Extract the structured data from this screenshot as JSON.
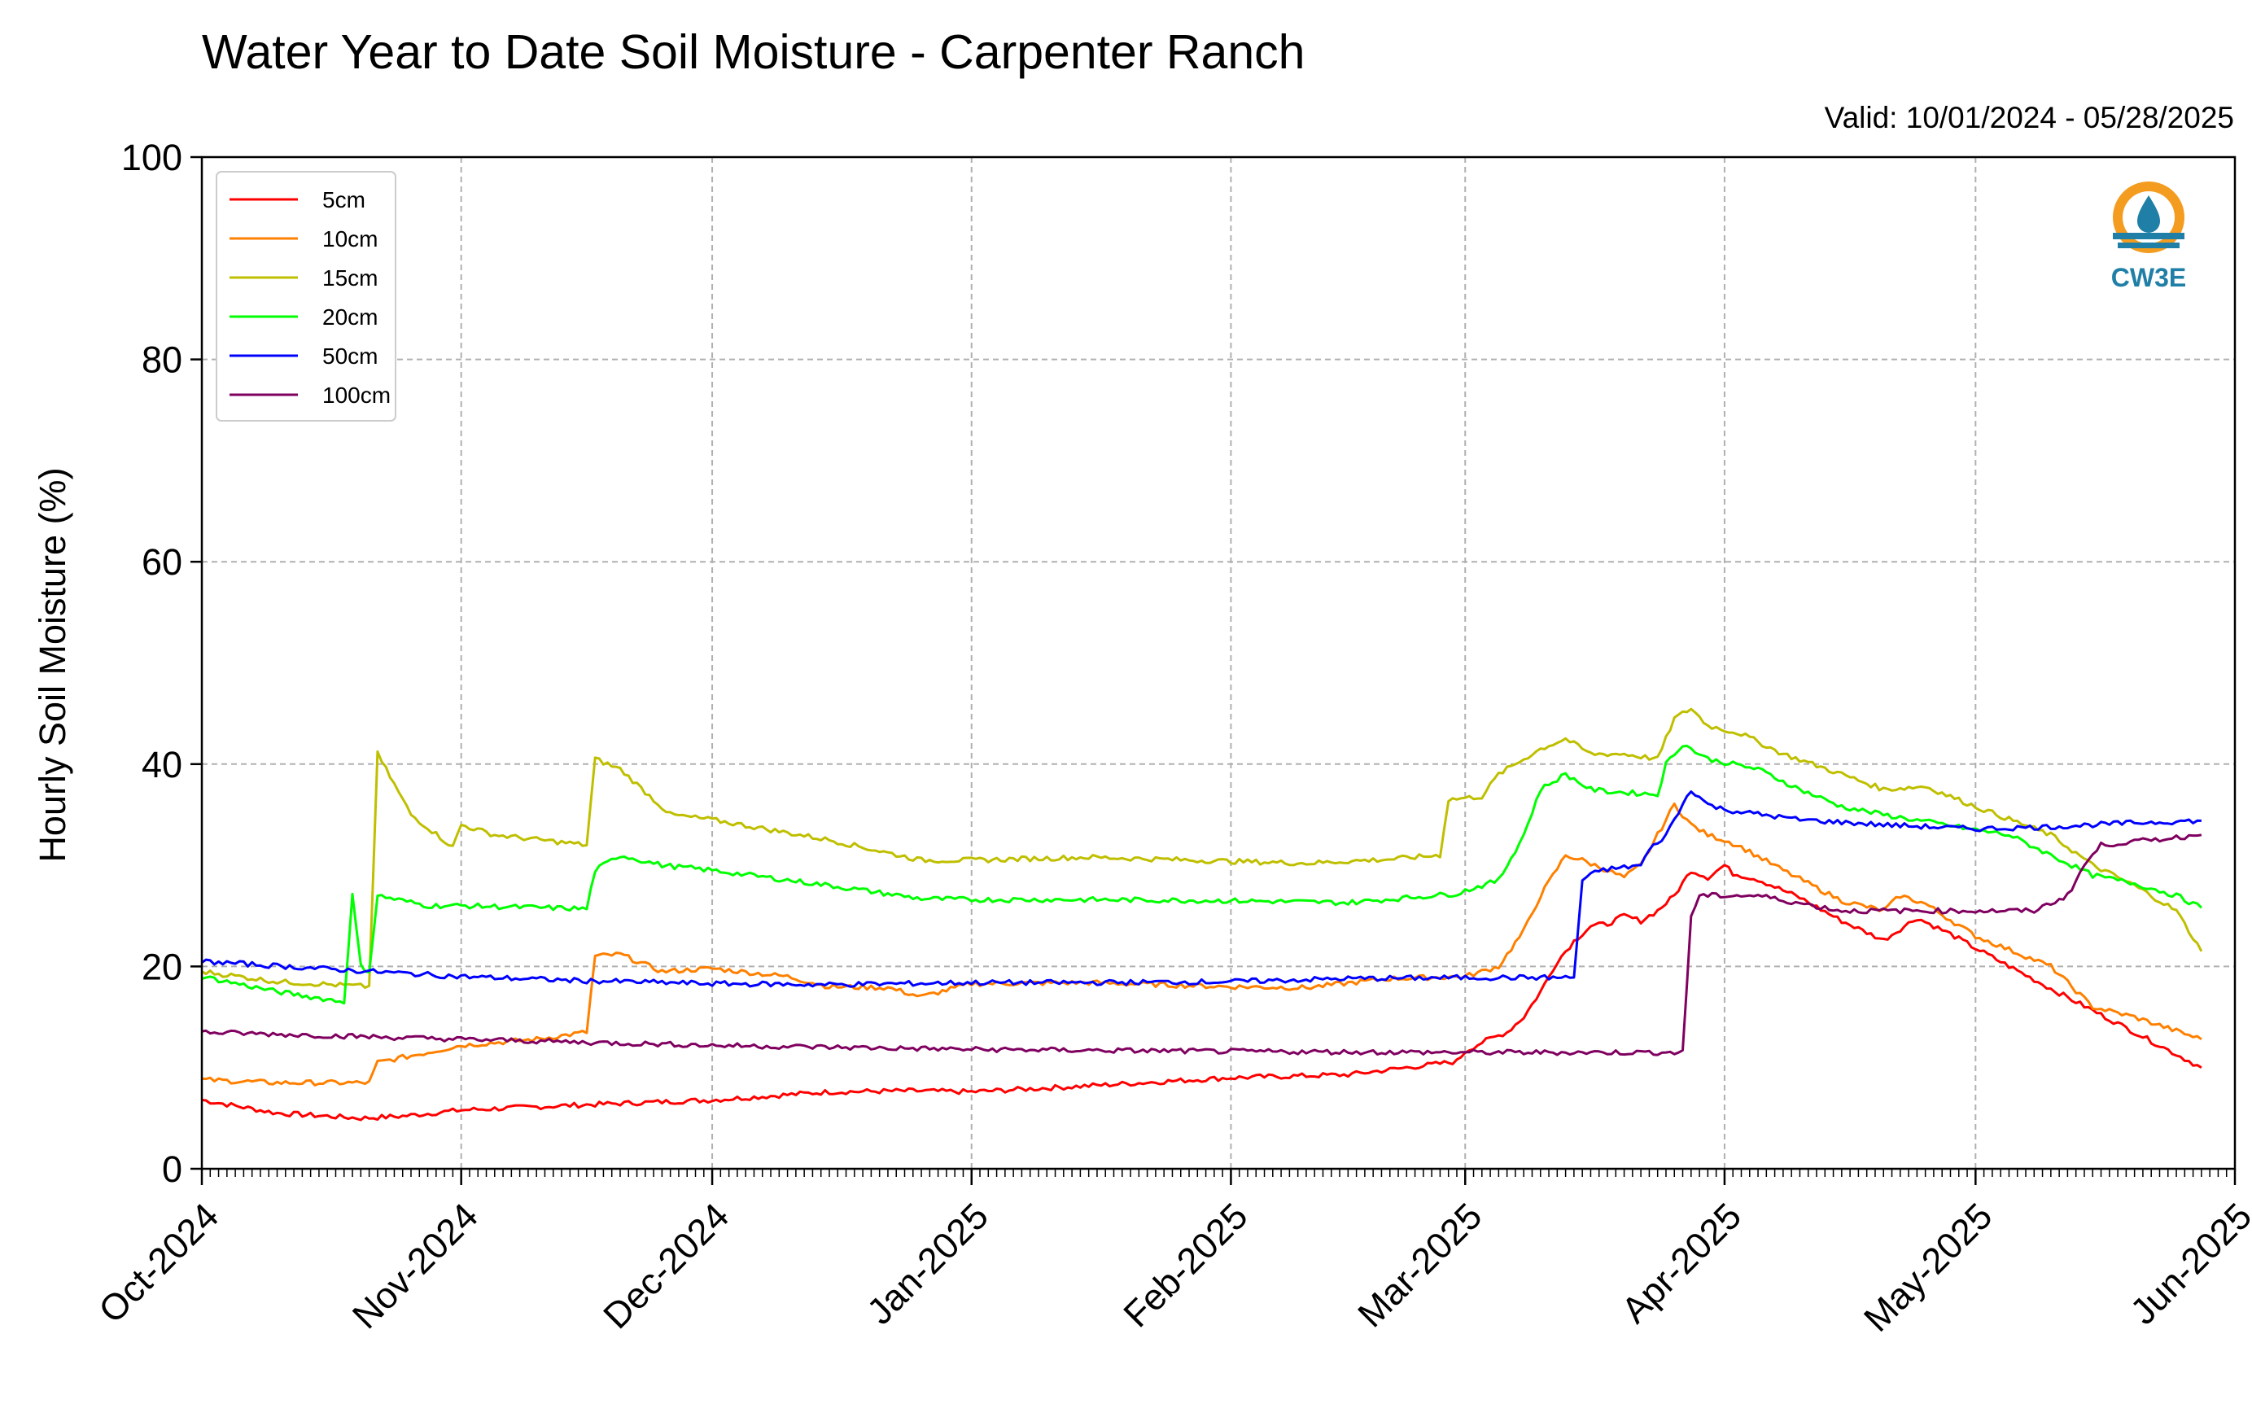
{
  "chart_data": {
    "type": "line",
    "title": "Water Year to Date Soil Moisture - Carpenter Ranch",
    "subtitle": "Valid: 10/01/2024 - 05/28/2025",
    "ylabel": "Hourly Soil Moisture (%)",
    "xlabel": "",
    "ylim": [
      0,
      100
    ],
    "yticks": [
      0,
      20,
      40,
      60,
      80,
      100
    ],
    "xlim": [
      "2024-10-01",
      "2025-06-01"
    ],
    "xticks": [
      {
        "date": "2024-10-01",
        "label": "Oct-2024"
      },
      {
        "date": "2024-11-01",
        "label": "Nov-2024"
      },
      {
        "date": "2024-12-01",
        "label": "Dec-2024"
      },
      {
        "date": "2025-01-01",
        "label": "Jan-2025"
      },
      {
        "date": "2025-02-01",
        "label": "Feb-2025"
      },
      {
        "date": "2025-03-01",
        "label": "Mar-2025"
      },
      {
        "date": "2025-04-01",
        "label": "Apr-2025"
      },
      {
        "date": "2025-05-01",
        "label": "May-2025"
      },
      {
        "date": "2025-06-01",
        "label": "Jun-2025"
      }
    ],
    "grid": true,
    "legend_position": "top-left",
    "series": [
      {
        "name": "5cm",
        "color": "#ff0000",
        "points": [
          [
            "2024-10-01",
            6.8
          ],
          [
            "2024-10-10",
            5.5
          ],
          [
            "2024-10-20",
            5.0
          ],
          [
            "2024-10-25",
            5.2
          ],
          [
            "2024-11-01",
            5.8
          ],
          [
            "2024-11-15",
            6.3
          ],
          [
            "2024-12-01",
            6.8
          ],
          [
            "2024-12-15",
            7.6
          ],
          [
            "2024-12-25",
            7.7
          ],
          [
            "2025-01-01",
            7.6
          ],
          [
            "2025-01-15",
            8.2
          ],
          [
            "2025-02-01",
            9.0
          ],
          [
            "2025-02-15",
            9.3
          ],
          [
            "2025-02-28",
            10.6
          ],
          [
            "2025-03-01",
            11.6
          ],
          [
            "2025-03-03",
            12.5
          ],
          [
            "2025-03-06",
            13.5
          ],
          [
            "2025-03-08",
            15.0
          ],
          [
            "2025-03-10",
            17.5
          ],
          [
            "2025-03-12",
            20.5
          ],
          [
            "2025-03-14",
            22.5
          ],
          [
            "2025-03-16",
            24.0
          ],
          [
            "2025-03-18",
            24.2
          ],
          [
            "2025-03-20",
            25.0
          ],
          [
            "2025-03-22",
            24.5
          ],
          [
            "2025-03-24",
            25.5
          ],
          [
            "2025-03-26",
            27.0
          ],
          [
            "2025-03-28",
            29.5
          ],
          [
            "2025-03-30",
            28.8
          ],
          [
            "2025-04-01",
            30.0
          ],
          [
            "2025-04-02",
            29.2
          ],
          [
            "2025-04-05",
            28.6
          ],
          [
            "2025-04-10",
            26.8
          ],
          [
            "2025-04-15",
            24.5
          ],
          [
            "2025-04-20",
            22.6
          ],
          [
            "2025-04-24",
            24.8
          ],
          [
            "2025-04-28",
            23.2
          ],
          [
            "2025-05-01",
            21.8
          ],
          [
            "2025-05-10",
            17.8
          ],
          [
            "2025-05-20",
            13.5
          ],
          [
            "2025-05-28",
            10.0
          ]
        ]
      },
      {
        "name": "10cm",
        "color": "#ff8000",
        "points": [
          [
            "2024-10-01",
            8.8
          ],
          [
            "2024-10-10",
            8.5
          ],
          [
            "2024-10-21",
            8.5
          ],
          [
            "2024-10-22",
            10.5
          ],
          [
            "2024-10-28",
            11.5
          ],
          [
            "2024-11-01",
            12.2
          ],
          [
            "2024-11-10",
            12.8
          ],
          [
            "2024-11-16",
            13.5
          ],
          [
            "2024-11-17",
            21.0
          ],
          [
            "2024-11-20",
            21.2
          ],
          [
            "2024-11-25",
            19.5
          ],
          [
            "2024-12-01",
            19.8
          ],
          [
            "2024-12-10",
            19.0
          ],
          [
            "2024-12-15",
            18.0
          ],
          [
            "2024-12-22",
            17.9
          ],
          [
            "2024-12-26",
            17.0
          ],
          [
            "2025-01-01",
            18.3
          ],
          [
            "2025-01-15",
            18.4
          ],
          [
            "2025-02-01",
            18.0
          ],
          [
            "2025-02-10",
            17.9
          ],
          [
            "2025-02-20",
            18.8
          ],
          [
            "2025-03-01",
            19.0
          ],
          [
            "2025-03-05",
            20.0
          ],
          [
            "2025-03-08",
            23.5
          ],
          [
            "2025-03-10",
            27.0
          ],
          [
            "2025-03-13",
            31.0
          ],
          [
            "2025-03-15",
            30.5
          ],
          [
            "2025-03-18",
            29.5
          ],
          [
            "2025-03-20",
            28.8
          ],
          [
            "2025-03-22",
            30.0
          ],
          [
            "2025-03-24",
            33.0
          ],
          [
            "2025-03-26",
            36.0
          ],
          [
            "2025-03-28",
            34.0
          ],
          [
            "2025-03-30",
            33.0
          ],
          [
            "2025-04-01",
            32.5
          ],
          [
            "2025-04-03",
            31.8
          ],
          [
            "2025-04-08",
            29.5
          ],
          [
            "2025-04-15",
            26.5
          ],
          [
            "2025-04-20",
            25.5
          ],
          [
            "2025-04-22",
            27.0
          ],
          [
            "2025-04-25",
            26.2
          ],
          [
            "2025-05-01",
            23.0
          ],
          [
            "2025-05-10",
            20.0
          ],
          [
            "2025-05-15",
            16.0
          ],
          [
            "2025-05-20",
            15.0
          ],
          [
            "2025-05-28",
            12.8
          ]
        ]
      },
      {
        "name": "15cm",
        "color": "#bfbf00",
        "points": [
          [
            "2024-10-01",
            19.5
          ],
          [
            "2024-10-10",
            18.5
          ],
          [
            "2024-10-21",
            18.0
          ],
          [
            "2024-10-22",
            41.0
          ],
          [
            "2024-10-26",
            35.0
          ],
          [
            "2024-10-31",
            31.8
          ],
          [
            "2024-11-01",
            34.0
          ],
          [
            "2024-11-05",
            33.0
          ],
          [
            "2024-11-16",
            32.0
          ],
          [
            "2024-11-17",
            40.5
          ],
          [
            "2024-11-20",
            39.5
          ],
          [
            "2024-11-26",
            35.0
          ],
          [
            "2024-12-01",
            34.5
          ],
          [
            "2024-12-15",
            32.5
          ],
          [
            "2024-12-26",
            30.5
          ],
          [
            "2025-01-01",
            30.5
          ],
          [
            "2025-01-15",
            30.8
          ],
          [
            "2025-02-01",
            30.4
          ],
          [
            "2025-02-10",
            30.2
          ],
          [
            "2025-02-20",
            30.6
          ],
          [
            "2025-02-26",
            31.0
          ],
          [
            "2025-02-27",
            36.5
          ],
          [
            "2025-03-03",
            36.8
          ],
          [
            "2025-03-05",
            39.0
          ],
          [
            "2025-03-10",
            41.5
          ],
          [
            "2025-03-13",
            42.5
          ],
          [
            "2025-03-16",
            41.0
          ],
          [
            "2025-03-20",
            41.0
          ],
          [
            "2025-03-24",
            40.5
          ],
          [
            "2025-03-26",
            44.5
          ],
          [
            "2025-03-28",
            45.5
          ],
          [
            "2025-03-30",
            43.8
          ],
          [
            "2025-04-03",
            43.0
          ],
          [
            "2025-04-08",
            41.0
          ],
          [
            "2025-04-15",
            39.0
          ],
          [
            "2025-04-20",
            37.5
          ],
          [
            "2025-04-25",
            37.8
          ],
          [
            "2025-05-01",
            35.8
          ],
          [
            "2025-05-10",
            33.0
          ],
          [
            "2025-05-15",
            30.0
          ],
          [
            "2025-05-20",
            28.0
          ],
          [
            "2025-05-25",
            25.5
          ],
          [
            "2025-05-28",
            21.5
          ]
        ]
      },
      {
        "name": "20cm",
        "color": "#00ff00",
        "points": [
          [
            "2024-10-01",
            19.0
          ],
          [
            "2024-10-10",
            17.5
          ],
          [
            "2024-10-18",
            16.5
          ],
          [
            "2024-10-19",
            27.0
          ],
          [
            "2024-10-20",
            20.0
          ],
          [
            "2024-10-21",
            19.5
          ],
          [
            "2024-10-22",
            27.0
          ],
          [
            "2024-10-28",
            26.0
          ],
          [
            "2024-11-01",
            26.0
          ],
          [
            "2024-11-16",
            25.7
          ],
          [
            "2024-11-17",
            29.5
          ],
          [
            "2024-11-20",
            31.0
          ],
          [
            "2024-11-25",
            30.0
          ],
          [
            "2024-12-01",
            29.5
          ],
          [
            "2024-12-15",
            28.0
          ],
          [
            "2024-12-26",
            26.7
          ],
          [
            "2025-01-01",
            26.6
          ],
          [
            "2025-01-15",
            26.6
          ],
          [
            "2025-02-01",
            26.5
          ],
          [
            "2025-02-15",
            26.3
          ],
          [
            "2025-02-28",
            27.2
          ],
          [
            "2025-03-01",
            27.5
          ],
          [
            "2025-03-05",
            28.5
          ],
          [
            "2025-03-08",
            33.0
          ],
          [
            "2025-03-10",
            37.5
          ],
          [
            "2025-03-13",
            39.0
          ],
          [
            "2025-03-16",
            37.5
          ],
          [
            "2025-03-18",
            37.3
          ],
          [
            "2025-03-24",
            37.0
          ],
          [
            "2025-03-25",
            40.0
          ],
          [
            "2025-03-27",
            42.0
          ],
          [
            "2025-03-30",
            40.5
          ],
          [
            "2025-04-05",
            39.5
          ],
          [
            "2025-04-10",
            37.5
          ],
          [
            "2025-04-15",
            35.8
          ],
          [
            "2025-04-20",
            35.0
          ],
          [
            "2025-05-01",
            33.5
          ],
          [
            "2025-05-05",
            33.0
          ],
          [
            "2025-05-10",
            31.0
          ],
          [
            "2025-05-15",
            29.0
          ],
          [
            "2025-05-20",
            28.2
          ],
          [
            "2025-05-25",
            27.0
          ],
          [
            "2025-05-28",
            25.8
          ]
        ]
      },
      {
        "name": "50cm",
        "color": "#0000ff",
        "points": [
          [
            "2024-10-01",
            20.5
          ],
          [
            "2024-10-15",
            19.8
          ],
          [
            "2024-11-01",
            19.0
          ],
          [
            "2024-11-15",
            18.6
          ],
          [
            "2024-12-01",
            18.3
          ],
          [
            "2024-12-15",
            18.2
          ],
          [
            "2025-01-01",
            18.4
          ],
          [
            "2025-01-15",
            18.4
          ],
          [
            "2025-02-01",
            18.5
          ],
          [
            "2025-02-15",
            18.8
          ],
          [
            "2025-03-01",
            18.9
          ],
          [
            "2025-03-14",
            18.9
          ],
          [
            "2025-03-15",
            28.5
          ],
          [
            "2025-03-17",
            29.5
          ],
          [
            "2025-03-22",
            30.0
          ],
          [
            "2025-03-23",
            31.5
          ],
          [
            "2025-03-25",
            33.0
          ],
          [
            "2025-03-28",
            37.5
          ],
          [
            "2025-03-30",
            36.0
          ],
          [
            "2025-04-01",
            35.5
          ],
          [
            "2025-04-10",
            34.5
          ],
          [
            "2025-04-20",
            34.0
          ],
          [
            "2025-05-01",
            33.6
          ],
          [
            "2025-05-10",
            33.8
          ],
          [
            "2025-05-20",
            34.2
          ],
          [
            "2025-05-28",
            34.4
          ]
        ]
      },
      {
        "name": "100cm",
        "color": "#800060",
        "points": [
          [
            "2024-10-01",
            13.5
          ],
          [
            "2024-11-01",
            12.8
          ],
          [
            "2024-12-01",
            12.2
          ],
          [
            "2025-01-01",
            11.8
          ],
          [
            "2025-02-01",
            11.6
          ],
          [
            "2025-03-01",
            11.5
          ],
          [
            "2025-03-27",
            11.5
          ],
          [
            "2025-03-28",
            25.0
          ],
          [
            "2025-03-29",
            27.0
          ],
          [
            "2025-04-05",
            27.0
          ],
          [
            "2025-04-15",
            25.5
          ],
          [
            "2025-05-01",
            25.5
          ],
          [
            "2025-05-08",
            25.5
          ],
          [
            "2025-05-12",
            27.0
          ],
          [
            "2025-05-14",
            30.0
          ],
          [
            "2025-05-16",
            32.0
          ],
          [
            "2025-05-22",
            32.5
          ],
          [
            "2025-05-28",
            33.0
          ]
        ]
      }
    ]
  },
  "logo": {
    "text": "CW3E",
    "ring_color": "#f39c1f",
    "wave_color": "#1f7fa6"
  }
}
